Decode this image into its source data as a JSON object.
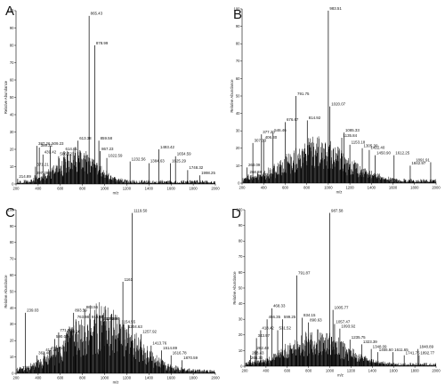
{
  "chart_data": [
    {
      "panel": "A",
      "type": "line",
      "xlabel": "m/z",
      "ylabel": "Relative Abundance",
      "xlim": [
        200,
        2000
      ],
      "ylim": [
        0,
        100
      ],
      "x_ticks": [
        "200",
        "400",
        "600",
        "800",
        "1000",
        "1200",
        "1400",
        "1600",
        "1800",
        "2000"
      ],
      "y_ticks": [
        "0",
        "10",
        "20",
        "30",
        "40",
        "50",
        "60",
        "70",
        "80",
        "90",
        "100"
      ],
      "envelope": {
        "center": 750,
        "width": 250,
        "height": 14
      },
      "peaks": [
        {
          "x": 215,
          "y": 3,
          "label": "214.89"
        },
        {
          "x": 370,
          "y": 5,
          "label": "397.28"
        },
        {
          "x": 376,
          "y": 10,
          "label": "371.21"
        },
        {
          "x": 389,
          "y": 22,
          "label": "387.26"
        },
        {
          "x": 410,
          "y": 21,
          "label": "389.21"
        },
        {
          "x": 443,
          "y": 17,
          "label": "439.42"
        },
        {
          "x": 510,
          "y": 22,
          "label": "509.23"
        },
        {
          "x": 585,
          "y": 16,
          "label": "586.52"
        },
        {
          "x": 634,
          "y": 19,
          "label": "614.61"
        },
        {
          "x": 760,
          "y": 25,
          "label": "613.38"
        },
        {
          "x": 860,
          "y": 97,
          "label": "865.43"
        },
        {
          "x": 910,
          "y": 80,
          "label": "878.99"
        },
        {
          "x": 948,
          "y": 25,
          "label": "859.58"
        },
        {
          "x": 960,
          "y": 19,
          "label": "867.23"
        },
        {
          "x": 1020,
          "y": 15,
          "label": "1022.59"
        },
        {
          "x": 1230,
          "y": 13,
          "label": "1232.56"
        },
        {
          "x": 1400,
          "y": 12,
          "label": "1384.63"
        },
        {
          "x": 1490,
          "y": 20,
          "label": "1493.42"
        },
        {
          "x": 1595,
          "y": 12,
          "label": "1625.29"
        },
        {
          "x": 1640,
          "y": 16,
          "label": "1654.59"
        },
        {
          "x": 1750,
          "y": 8,
          "label": "1748.32"
        },
        {
          "x": 1860,
          "y": 5,
          "label": "1998.25"
        }
      ]
    },
    {
      "panel": "B",
      "type": "line",
      "xlabel": "m/z",
      "ylabel": "Relative Abundance",
      "xlim": [
        200,
        2000
      ],
      "ylim": [
        0,
        100
      ],
      "x_ticks": [
        "200",
        "400",
        "600",
        "800",
        "1000",
        "1200",
        "1400",
        "1600",
        "1800",
        "2000"
      ],
      "y_ticks": [
        "0",
        "10",
        "20",
        "30",
        "40",
        "50",
        "60",
        "70",
        "80",
        "90",
        "100"
      ],
      "envelope": {
        "center": 900,
        "width": 420,
        "height": 18
      },
      "peaks": [
        {
          "x": 245,
          "y": 9,
          "label": "263.09"
        },
        {
          "x": 258,
          "y": 5,
          "label": "268.88"
        },
        {
          "x": 300,
          "y": 23,
          "label": "307.33"
        },
        {
          "x": 380,
          "y": 28,
          "label": "377.20"
        },
        {
          "x": 400,
          "y": 25,
          "label": "406.30"
        },
        {
          "x": 487,
          "y": 29,
          "label": "546.46"
        },
        {
          "x": 600,
          "y": 35,
          "label": "676.67"
        },
        {
          "x": 700,
          "y": 50,
          "label": "791.75"
        },
        {
          "x": 805,
          "y": 36,
          "label": "814.92"
        },
        {
          "x": 1000,
          "y": 99,
          "label": "983.51"
        },
        {
          "x": 1015,
          "y": 44,
          "label": "1020.07"
        },
        {
          "x": 1145,
          "y": 29,
          "label": "1085.33"
        },
        {
          "x": 1125,
          "y": 26,
          "label": "1135.84"
        },
        {
          "x": 1200,
          "y": 22,
          "label": "1153.18"
        },
        {
          "x": 1315,
          "y": 20,
          "label": "1305.30"
        },
        {
          "x": 1380,
          "y": 19,
          "label": "1422.40"
        },
        {
          "x": 1435,
          "y": 16,
          "label": "1450.90"
        },
        {
          "x": 1610,
          "y": 16,
          "label": "1612.25"
        },
        {
          "x": 1760,
          "y": 10,
          "label": "1842.97"
        },
        {
          "x": 1950,
          "y": 12,
          "label": "1891.91"
        }
      ]
    },
    {
      "panel": "C",
      "type": "line",
      "xlabel": "m/z",
      "ylabel": "Relative Abundance",
      "xlim": [
        200,
        2000
      ],
      "ylim": [
        0,
        100
      ],
      "x_ticks": [
        "200",
        "400",
        "600",
        "800",
        "1000",
        "1200",
        "1400",
        "1600",
        "1800",
        "2000"
      ],
      "y_ticks": [
        "0",
        "10",
        "20",
        "30",
        "40",
        "50",
        "60",
        "70",
        "80",
        "90",
        "100"
      ],
      "envelope": {
        "center": 960,
        "width": 420,
        "height": 30
      },
      "peaks": [
        {
          "x": 245,
          "y": 2,
          "label": "216.21"
        },
        {
          "x": 285,
          "y": 37,
          "label": "239.03"
        },
        {
          "x": 390,
          "y": 11,
          "label": "362.40"
        },
        {
          "x": 455,
          "y": 13,
          "label": "413.88"
        },
        {
          "x": 500,
          "y": 14,
          "label": "476.51"
        },
        {
          "x": 550,
          "y": 21,
          "label": "590.00"
        },
        {
          "x": 585,
          "y": 25,
          "label": "771.35"
        },
        {
          "x": 660,
          "y": 24,
          "label": "708.90"
        },
        {
          "x": 720,
          "y": 37,
          "label": "893.59"
        },
        {
          "x": 740,
          "y": 33,
          "label": "763.98"
        },
        {
          "x": 820,
          "y": 39,
          "label": "863.56"
        },
        {
          "x": 870,
          "y": 33,
          "label": "918.38"
        },
        {
          "x": 965,
          "y": 32,
          "label": "1047.86"
        },
        {
          "x": 1000,
          "y": 32,
          "label": "1102.90"
        },
        {
          "x": 1250,
          "y": 98,
          "label": "1119.50"
        },
        {
          "x": 1165,
          "y": 56,
          "label": "1161"
        },
        {
          "x": 1140,
          "y": 30,
          "label": "1154.55"
        },
        {
          "x": 1200,
          "y": 27,
          "label": "1204.63"
        },
        {
          "x": 1330,
          "y": 24,
          "label": "1257.92"
        },
        {
          "x": 1420,
          "y": 17,
          "label": "1413.76"
        },
        {
          "x": 1515,
          "y": 14,
          "label": "1514.89"
        },
        {
          "x": 1600,
          "y": 11,
          "label": "1616.78"
        },
        {
          "x": 1700,
          "y": 8,
          "label": "1870.59"
        }
      ]
    },
    {
      "panel": "D",
      "type": "line",
      "xlabel": "m/z",
      "ylabel": "Relative Abundance",
      "xlim": [
        200,
        2000
      ],
      "ylim": [
        0,
        100
      ],
      "x_ticks": [
        "200",
        "400",
        "600",
        "800",
        "1000",
        "1200",
        "1400",
        "1600",
        "1800",
        "2000"
      ],
      "y_ticks": [
        "0",
        "10",
        "20",
        "30",
        "40",
        "50",
        "60",
        "70",
        "80",
        "90",
        "100"
      ],
      "envelope": {
        "center": 880,
        "width": 380,
        "height": 16
      },
      "peaks": [
        {
          "x": 245,
          "y": 4,
          "label": "266.30"
        },
        {
          "x": 255,
          "y": 7,
          "label": "268.43"
        },
        {
          "x": 300,
          "y": 10,
          "label": "282.48"
        },
        {
          "x": 310,
          "y": 18,
          "label": "343.97"
        },
        {
          "x": 350,
          "y": 23,
          "label": "418.42"
        },
        {
          "x": 410,
          "y": 30,
          "label": "456.35"
        },
        {
          "x": 455,
          "y": 37,
          "label": "468.33"
        },
        {
          "x": 510,
          "y": 23,
          "label": "531.52"
        },
        {
          "x": 555,
          "y": 30,
          "label": "599.25"
        },
        {
          "x": 690,
          "y": 58,
          "label": "791.87"
        },
        {
          "x": 740,
          "y": 31,
          "label": "834.15"
        },
        {
          "x": 800,
          "y": 28,
          "label": "890.63"
        },
        {
          "x": 1000,
          "y": 98,
          "label": "987.58"
        },
        {
          "x": 1030,
          "y": 36,
          "label": "1005.77"
        },
        {
          "x": 1045,
          "y": 27,
          "label": "1057.47"
        },
        {
          "x": 1095,
          "y": 24,
          "label": "1093.92"
        },
        {
          "x": 1190,
          "y": 17,
          "label": "1235.75"
        },
        {
          "x": 1300,
          "y": 14,
          "label": "1323.39"
        },
        {
          "x": 1390,
          "y": 11,
          "label": "1348.09"
        },
        {
          "x": 1450,
          "y": 9,
          "label": "1466.60"
        },
        {
          "x": 1595,
          "y": 9,
          "label": "1611.65"
        },
        {
          "x": 1700,
          "y": 7,
          "label": "1741.75"
        },
        {
          "x": 1830,
          "y": 11,
          "label": "1848.89"
        },
        {
          "x": 1840,
          "y": 7,
          "label": "1892.77"
        }
      ]
    }
  ]
}
